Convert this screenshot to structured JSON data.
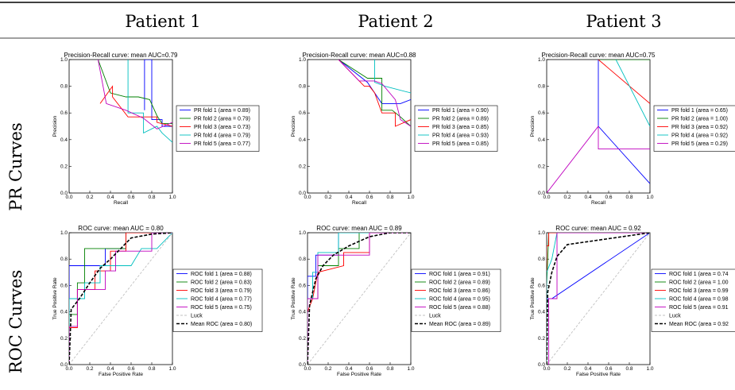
{
  "columns": [
    "Patient 1",
    "Patient 2",
    "Patient 3"
  ],
  "rows": [
    "PR Curves",
    "ROC Curves"
  ],
  "colors": {
    "fold1": "#0000ff",
    "fold2": "#008000",
    "fold3": "#ff0000",
    "fold4": "#00bfbf",
    "fold5": "#bf00bf",
    "luck": "#c0c0c0",
    "mean": "#000000"
  },
  "chart_data": [
    {
      "type": "line",
      "kind": "pr",
      "patient": "Patient 1",
      "title": "Precision-Recall curve: mean AUC=0.79",
      "xlabel": "Recall",
      "ylabel": "Precision",
      "xlim": [
        0,
        1
      ],
      "ylim": [
        0,
        1
      ],
      "ticks": [
        "0.0",
        "0.2",
        "0.4",
        "0.6",
        "0.8",
        "1.0"
      ],
      "legend": "right",
      "series": [
        {
          "name": "PR fold 1 (area = 0.89)",
          "color": "#0000ff",
          "x": [
            0.73,
            0.73,
            0.8,
            0.8,
            0.9,
            0.9,
            1.0
          ],
          "y": [
            0.62,
            1.0,
            1.0,
            0.55,
            0.55,
            0.5,
            0.5
          ]
        },
        {
          "name": "PR fold 2 (area = 0.79)",
          "color": "#008000",
          "x": [
            0.28,
            0.4,
            0.55,
            0.67,
            0.78,
            0.85,
            0.9,
            1.0
          ],
          "y": [
            1.0,
            0.75,
            0.72,
            0.72,
            0.7,
            0.58,
            0.52,
            0.52
          ]
        },
        {
          "name": "PR fold 3 (area = 0.73)",
          "color": "#ff0000",
          "x": [
            0.3,
            0.3,
            0.42,
            0.42,
            0.57,
            0.62,
            0.85,
            0.85,
            1.0
          ],
          "y": [
            0.67,
            0.67,
            0.8,
            0.72,
            0.57,
            0.57,
            0.57,
            0.53,
            0.5
          ]
        },
        {
          "name": "PR fold 4 (area = 0.79)",
          "color": "#00bfbf",
          "x": [
            0.57,
            0.57,
            0.72,
            0.72,
            0.85,
            0.9,
            1.0
          ],
          "y": [
            1.0,
            0.6,
            0.6,
            0.45,
            0.5,
            0.45,
            0.38
          ]
        },
        {
          "name": "PR fold 5 (area = 0.77)",
          "color": "#bf00bf",
          "x": [
            0.28,
            0.36,
            0.55,
            0.72,
            0.85,
            1.0
          ],
          "y": [
            1.0,
            0.67,
            0.62,
            0.56,
            0.48,
            0.53
          ]
        }
      ]
    },
    {
      "type": "line",
      "kind": "pr",
      "patient": "Patient 2",
      "title": "Precision-Recall curve: mean AUC=0.88",
      "xlabel": "Recall",
      "ylabel": "Precision",
      "xlim": [
        0,
        1
      ],
      "ylim": [
        0,
        1
      ],
      "ticks": [
        "0.0",
        "0.2",
        "0.4",
        "0.6",
        "0.8",
        "1.0"
      ],
      "legend": "right",
      "series": [
        {
          "name": "PR fold 1 (area = 0.90)",
          "color": "#0000ff",
          "x": [
            0.3,
            0.58,
            0.72,
            0.82,
            0.9,
            1.0
          ],
          "y": [
            1.0,
            0.83,
            0.67,
            0.67,
            0.67,
            0.7
          ]
        },
        {
          "name": "PR fold 2 (area = 0.89)",
          "color": "#008000",
          "x": [
            0.3,
            0.58,
            0.72,
            0.72,
            0.82,
            0.9,
            1.0
          ],
          "y": [
            1.0,
            0.86,
            0.86,
            0.62,
            0.62,
            0.57,
            0.5
          ]
        },
        {
          "name": "PR fold 3 (area = 0.85)",
          "color": "#ff0000",
          "x": [
            0.3,
            0.55,
            0.6,
            0.65,
            0.72,
            0.78,
            0.85,
            0.85,
            1.0
          ],
          "y": [
            1.0,
            0.8,
            0.8,
            0.75,
            0.6,
            0.6,
            0.6,
            0.5,
            0.55
          ]
        },
        {
          "name": "PR fold 4 (area = 0.93)",
          "color": "#00bfbf",
          "x": [
            0.65,
            0.65,
            0.75,
            1.0
          ],
          "y": [
            1.0,
            0.83,
            0.8,
            0.75
          ]
        },
        {
          "name": "PR fold 5 (area = 0.85)",
          "color": "#bf00bf",
          "x": [
            0.3,
            0.5,
            0.65,
            0.72,
            0.85,
            0.9,
            1.0
          ],
          "y": [
            1.0,
            0.84,
            0.84,
            0.82,
            0.7,
            0.55,
            0.5
          ]
        }
      ]
    },
    {
      "type": "line",
      "kind": "pr",
      "patient": "Patient 3",
      "title": "Precision-Recall curve: mean AUC=0.75",
      "xlabel": "Recall",
      "ylabel": "Precision",
      "xlim": [
        0,
        1
      ],
      "ylim": [
        0,
        1
      ],
      "ticks": [
        "0.0",
        "0.2",
        "0.4",
        "0.6",
        "0.8",
        "1.0"
      ],
      "legend": "right",
      "series": [
        {
          "name": "PR fold 1 (area = 0.65)",
          "color": "#0000ff",
          "x": [
            0.5,
            0.5,
            1.0
          ],
          "y": [
            1.0,
            0.5,
            0.07
          ]
        },
        {
          "name": "PR fold 2 (area = 1.00)",
          "color": "#008000",
          "x": [
            0.5,
            1.0
          ],
          "y": [
            1.0,
            1.0
          ]
        },
        {
          "name": "PR fold 3 (area = 0.92)",
          "color": "#ff0000",
          "x": [
            0.5,
            1.0
          ],
          "y": [
            1.0,
            0.67
          ]
        },
        {
          "name": "PR fold 4 (area = 0.92)",
          "color": "#00bfbf",
          "x": [
            0.67,
            1.0
          ],
          "y": [
            1.0,
            0.5
          ]
        },
        {
          "name": "PR fold 5 (area = 0.29)",
          "color": "#bf00bf",
          "x": [
            0.0,
            0.5,
            0.5,
            1.0
          ],
          "y": [
            0.0,
            0.5,
            0.33,
            0.33
          ]
        }
      ]
    },
    {
      "type": "line",
      "kind": "roc",
      "patient": "Patient 1",
      "title": "ROC curve: mean AUC = 0.80",
      "xlabel": "False Positive Rate",
      "ylabel": "True Positive Rate",
      "xlim": [
        0,
        1
      ],
      "ylim": [
        0,
        1
      ],
      "ticks": [
        "0.0",
        "0.2",
        "0.4",
        "0.6",
        "0.8",
        "1.0"
      ],
      "legend": "right",
      "series": [
        {
          "name": "ROC fold 1 (area = 0.88)",
          "color": "#0000ff",
          "x": [
            0,
            0,
            0.35,
            0.35,
            0.55,
            0.55,
            1.0
          ],
          "y": [
            0,
            0.75,
            0.75,
            0.88,
            0.88,
            1.0,
            1.0
          ]
        },
        {
          "name": "ROC fold 2 (area = 0.83)",
          "color": "#008000",
          "x": [
            0,
            0,
            0.08,
            0.08,
            0.15,
            0.15,
            0.35,
            0.35,
            0.5,
            0.5,
            0.55,
            0.55,
            1.0
          ],
          "y": [
            0,
            0.38,
            0.38,
            0.62,
            0.62,
            0.88,
            0.88,
            0.88,
            0.88,
            0.88,
            0.88,
            1.0,
            1.0
          ]
        },
        {
          "name": "ROC fold 3 (area = 0.79)",
          "color": "#ff0000",
          "x": [
            0,
            0,
            0.08,
            0.08,
            0.25,
            0.25,
            0.4,
            0.4,
            0.55,
            0.55,
            1.0
          ],
          "y": [
            0,
            0.28,
            0.28,
            0.57,
            0.57,
            0.71,
            0.71,
            0.86,
            0.86,
            1.0,
            1.0
          ]
        },
        {
          "name": "ROC fold 4 (area = 0.77)",
          "color": "#00bfbf",
          "x": [
            0,
            0,
            0.15,
            0.15,
            0.3,
            0.3,
            0.6,
            0.7,
            0.85,
            1.0
          ],
          "y": [
            0,
            0.5,
            0.5,
            0.62,
            0.62,
            0.75,
            0.75,
            0.88,
            0.88,
            1.0
          ]
        },
        {
          "name": "ROC fold 5 (area = 0.75)",
          "color": "#bf00bf",
          "x": [
            0,
            0,
            0.08,
            0.08,
            0.35,
            0.35,
            0.45,
            0.45,
            0.8,
            0.8,
            1.0
          ],
          "y": [
            0,
            0.29,
            0.29,
            0.57,
            0.57,
            0.71,
            0.71,
            0.86,
            0.86,
            1.0,
            1.0
          ]
        },
        {
          "name": "Luck",
          "color": "#c0c0c0",
          "dash": "3,2",
          "x": [
            0,
            1
          ],
          "y": [
            0,
            1
          ]
        },
        {
          "name": "Mean ROC (area = 0.80)",
          "color": "#000000",
          "dash": "4,2",
          "width": 1.6,
          "x": [
            0,
            0.02,
            0.1,
            0.2,
            0.3,
            0.4,
            0.5,
            0.6,
            0.8,
            1.0
          ],
          "y": [
            0,
            0.42,
            0.5,
            0.62,
            0.73,
            0.8,
            0.88,
            0.96,
            0.99,
            1.0
          ]
        }
      ]
    },
    {
      "type": "line",
      "kind": "roc",
      "patient": "Patient 2",
      "title": "ROC curve: mean AUC = 0.89",
      "xlabel": "False Positive Rate",
      "ylabel": "True Positive Rate",
      "xlim": [
        0,
        1
      ],
      "ylim": [
        0,
        1
      ],
      "ticks": [
        "0.0",
        "0.2",
        "0.4",
        "0.6",
        "0.8",
        "1.0"
      ],
      "legend": "right",
      "series": [
        {
          "name": "ROC fold 1 (area = 0.91)",
          "color": "#0000ff",
          "x": [
            0,
            0,
            0.08,
            0.08,
            0.3,
            0.3,
            1.0
          ],
          "y": [
            0,
            0.67,
            0.67,
            0.83,
            0.83,
            1.0,
            1.0
          ]
        },
        {
          "name": "ROC fold 2 (area = 0.89)",
          "color": "#008000",
          "x": [
            0,
            0,
            0.1,
            0.1,
            0.3,
            0.3,
            0.5,
            0.5,
            1.0
          ],
          "y": [
            0,
            0.5,
            0.5,
            0.75,
            0.75,
            0.88,
            0.88,
            1.0,
            1.0
          ]
        },
        {
          "name": "ROC fold 3 (area = 0.86)",
          "color": "#ff0000",
          "x": [
            0,
            0,
            0.05,
            0.1,
            0.1,
            0.35,
            0.35,
            0.6,
            0.6,
            1.0
          ],
          "y": [
            0,
            0.4,
            0.5,
            0.7,
            0.7,
            0.75,
            0.85,
            0.85,
            1.0,
            1.0
          ]
        },
        {
          "name": "ROC fold 4 (area = 0.95)",
          "color": "#00bfbf",
          "x": [
            0,
            0,
            0.05,
            0.05,
            0.1,
            0.1,
            0.3,
            0.3,
            1.0
          ],
          "y": [
            0,
            0.5,
            0.5,
            0.7,
            0.7,
            0.85,
            0.85,
            1.0,
            1.0
          ]
        },
        {
          "name": "ROC fold 5 (area = 0.88)",
          "color": "#bf00bf",
          "x": [
            0,
            0,
            0.1,
            0.1,
            0.25,
            0.25,
            0.6,
            0.6,
            1.0
          ],
          "y": [
            0,
            0.5,
            0.5,
            0.83,
            0.83,
            0.83,
            0.83,
            1.0,
            1.0
          ]
        },
        {
          "name": "Luck",
          "color": "#c0c0c0",
          "dash": "3,2",
          "x": [
            0,
            1
          ],
          "y": [
            0,
            1
          ]
        },
        {
          "name": "Mean ROC (area = 0.89)",
          "color": "#000000",
          "dash": "4,2",
          "width": 1.6,
          "x": [
            0,
            0.02,
            0.08,
            0.15,
            0.25,
            0.4,
            0.6,
            0.8,
            1.0
          ],
          "y": [
            0,
            0.45,
            0.65,
            0.75,
            0.83,
            0.9,
            0.97,
            1.0,
            1.0
          ]
        }
      ]
    },
    {
      "type": "line",
      "kind": "roc",
      "patient": "Patient 3",
      "title": "ROC curve: mean AUC = 0.92",
      "xlabel": "False Positive Rate",
      "ylabel": "True Positive Rate",
      "xlim": [
        0,
        1
      ],
      "ylim": [
        0,
        1
      ],
      "ticks": [
        "0.0",
        "0.2",
        "0.4",
        "0.6",
        "0.8",
        "1.0"
      ],
      "legend": "right",
      "series": [
        {
          "name": "ROC fold 1 (area = 0.74",
          "color": "#0000ff",
          "x": [
            0,
            0,
            0.05,
            0.05,
            1.0
          ],
          "y": [
            0,
            0.5,
            0.5,
            0.5,
            1.0
          ]
        },
        {
          "name": "ROC fold 2 (area = 1.00",
          "color": "#008000",
          "x": [
            0,
            0,
            0.02,
            1.0
          ],
          "y": [
            0,
            0.6,
            1.0,
            1.0
          ]
        },
        {
          "name": "ROC fold 3 (area = 0.99",
          "color": "#ff0000",
          "x": [
            0,
            0,
            0.02,
            0.02,
            1.0
          ],
          "y": [
            0,
            0.9,
            0.9,
            1.0,
            1.0
          ]
        },
        {
          "name": "ROC fold 4 (area = 0.98",
          "color": "#00bfbf",
          "x": [
            0,
            0,
            0.05,
            0.1,
            0.2,
            1.0
          ],
          "y": [
            0,
            0.7,
            0.8,
            1.0,
            1.0,
            1.0
          ]
        },
        {
          "name": "ROC fold 5 (area = 0.91",
          "color": "#bf00bf",
          "x": [
            0.02,
            0.02,
            0.1,
            0.1,
            1.0
          ],
          "y": [
            0,
            0.5,
            0.5,
            1.0,
            1.0
          ]
        },
        {
          "name": "Luck",
          "color": "#c0c0c0",
          "dash": "3,2",
          "x": [
            0,
            1
          ],
          "y": [
            0,
            1
          ]
        },
        {
          "name": "Mean ROC (area = 0.92",
          "color": "#000000",
          "dash": "4,2",
          "width": 1.6,
          "x": [
            0,
            0.01,
            0.05,
            0.1,
            0.2,
            1.0
          ],
          "y": [
            0,
            0.55,
            0.7,
            0.82,
            0.91,
            1.0
          ]
        }
      ]
    }
  ]
}
